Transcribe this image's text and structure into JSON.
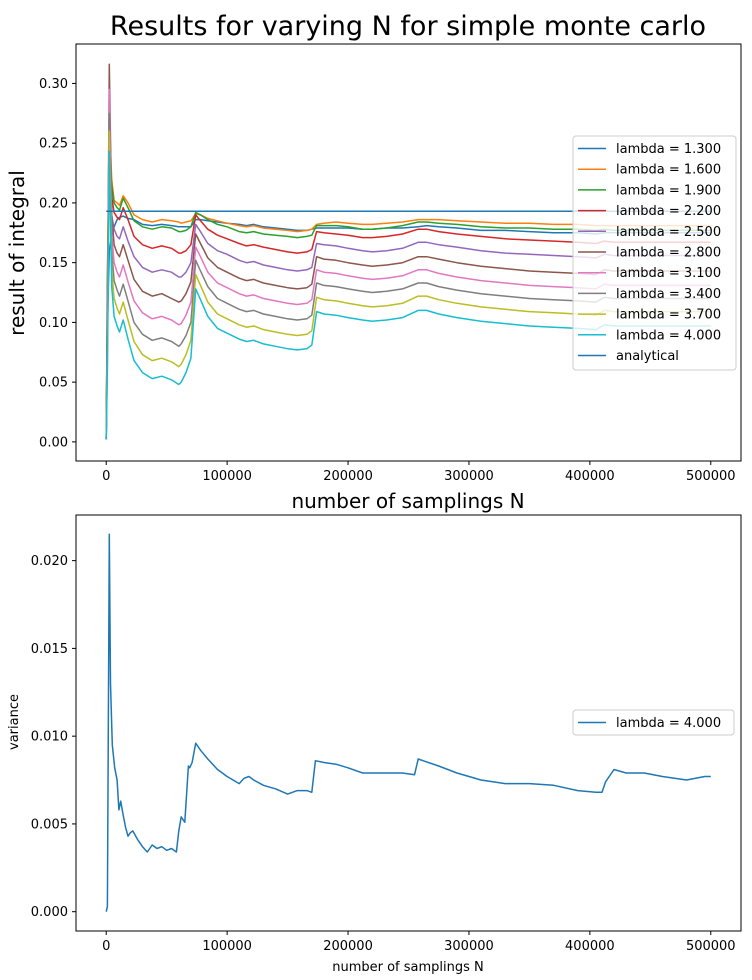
{
  "chart_data": [
    {
      "type": "line",
      "title": "Results for varying N for simple monte carlo",
      "xlabel": "number of samplings N",
      "ylabel": "result of integral",
      "xlim": [
        -25000,
        525000
      ],
      "ylim": [
        -0.016,
        0.333
      ],
      "xticks": [
        0,
        100000,
        200000,
        300000,
        400000,
        500000
      ],
      "xtick_labels": [
        "0",
        "100000",
        "200000",
        "300000",
        "400000",
        "500000"
      ],
      "yticks": [
        0.0,
        0.05,
        0.1,
        0.15,
        0.2,
        0.25,
        0.3
      ],
      "ytick_labels": [
        "0.00",
        "0.05",
        "0.10",
        "0.15",
        "0.20",
        "0.25",
        "0.30"
      ],
      "grid": false,
      "legend_position": "center-right",
      "analytical": {
        "name": "analytical",
        "value": 0.193,
        "x_range": [
          0,
          500000
        ],
        "color": "#1f77b4"
      },
      "profile_x": [
        0,
        1000,
        2500,
        4500,
        6500,
        9000,
        11000,
        14000,
        18000,
        23000,
        30000,
        38000,
        46000,
        54000,
        60000,
        62000,
        66000,
        70000,
        74000,
        78000,
        84000,
        92000,
        100000,
        110000,
        116000,
        122000,
        130000,
        140000,
        150000,
        158000,
        166000,
        170000,
        174000,
        180000,
        190000,
        200000,
        212000,
        220000,
        232000,
        245000,
        258000,
        265000,
        275000,
        290000,
        310000,
        330000,
        350000,
        370000,
        390000,
        405000,
        412000,
        420000,
        430000,
        445000,
        460000,
        480000,
        500000
      ],
      "series": [
        {
          "name": "lambda = 1.300",
          "color": "#1f77b4",
          "values": [
            0.002,
            0.095,
            0.16,
            0.172,
            0.18,
            0.186,
            0.188,
            0.189,
            0.187,
            0.186,
            0.182,
            0.181,
            0.182,
            0.181,
            0.18,
            0.18,
            0.18,
            0.18,
            0.186,
            0.186,
            0.185,
            0.184,
            0.183,
            0.182,
            0.181,
            0.182,
            0.18,
            0.179,
            0.178,
            0.177,
            0.177,
            0.178,
            0.179,
            0.179,
            0.179,
            0.179,
            0.178,
            0.178,
            0.179,
            0.179,
            0.18,
            0.181,
            0.18,
            0.179,
            0.177,
            0.177,
            0.176,
            0.175,
            0.175,
            0.174,
            0.175,
            0.175,
            0.175,
            0.175,
            0.175,
            0.175,
            0.175
          ]
        },
        {
          "name": "lambda = 1.600",
          "color": "#ff7f0e",
          "values": [
            0.002,
            0.14,
            0.27,
            0.22,
            0.202,
            0.2,
            0.198,
            0.206,
            0.2,
            0.19,
            0.186,
            0.184,
            0.186,
            0.185,
            0.184,
            0.183,
            0.184,
            0.185,
            0.191,
            0.19,
            0.187,
            0.185,
            0.183,
            0.181,
            0.18,
            0.181,
            0.179,
            0.178,
            0.177,
            0.176,
            0.177,
            0.178,
            0.182,
            0.183,
            0.184,
            0.183,
            0.182,
            0.182,
            0.183,
            0.184,
            0.186,
            0.186,
            0.186,
            0.185,
            0.184,
            0.183,
            0.183,
            0.182,
            0.182,
            0.181,
            0.181,
            0.181,
            0.181,
            0.181,
            0.181,
            0.181,
            0.181
          ]
        },
        {
          "name": "lambda = 1.900",
          "color": "#2ca02c",
          "values": [
            0.002,
            0.13,
            0.26,
            0.215,
            0.2,
            0.196,
            0.194,
            0.204,
            0.196,
            0.185,
            0.18,
            0.178,
            0.18,
            0.179,
            0.176,
            0.176,
            0.177,
            0.18,
            0.192,
            0.19,
            0.186,
            0.182,
            0.18,
            0.176,
            0.175,
            0.176,
            0.174,
            0.173,
            0.172,
            0.171,
            0.172,
            0.173,
            0.181,
            0.181,
            0.181,
            0.18,
            0.178,
            0.178,
            0.179,
            0.181,
            0.184,
            0.184,
            0.183,
            0.182,
            0.18,
            0.179,
            0.179,
            0.178,
            0.178,
            0.177,
            0.178,
            0.177,
            0.177,
            0.177,
            0.177,
            0.177,
            0.177
          ]
        },
        {
          "name": "lambda = 2.200",
          "color": "#d62728",
          "values": [
            0.002,
            0.12,
            0.255,
            0.205,
            0.192,
            0.188,
            0.186,
            0.196,
            0.186,
            0.172,
            0.165,
            0.162,
            0.164,
            0.162,
            0.158,
            0.158,
            0.16,
            0.165,
            0.19,
            0.185,
            0.178,
            0.173,
            0.17,
            0.166,
            0.164,
            0.165,
            0.163,
            0.161,
            0.159,
            0.158,
            0.159,
            0.161,
            0.176,
            0.175,
            0.174,
            0.173,
            0.171,
            0.171,
            0.172,
            0.174,
            0.178,
            0.178,
            0.176,
            0.174,
            0.172,
            0.17,
            0.169,
            0.168,
            0.167,
            0.166,
            0.168,
            0.167,
            0.167,
            0.167,
            0.167,
            0.167,
            0.167
          ]
        },
        {
          "name": "lambda = 2.500",
          "color": "#9467bd",
          "values": [
            0.002,
            0.11,
            0.25,
            0.19,
            0.178,
            0.172,
            0.17,
            0.18,
            0.168,
            0.155,
            0.146,
            0.142,
            0.144,
            0.142,
            0.138,
            0.138,
            0.142,
            0.15,
            0.182,
            0.176,
            0.166,
            0.16,
            0.157,
            0.152,
            0.15,
            0.151,
            0.148,
            0.146,
            0.144,
            0.143,
            0.144,
            0.146,
            0.166,
            0.165,
            0.164,
            0.162,
            0.16,
            0.159,
            0.16,
            0.162,
            0.167,
            0.167,
            0.165,
            0.163,
            0.16,
            0.158,
            0.157,
            0.156,
            0.155,
            0.154,
            0.157,
            0.156,
            0.156,
            0.156,
            0.156,
            0.156,
            0.156
          ]
        },
        {
          "name": "lambda = 2.800",
          "color": "#8c564b",
          "values": [
            0.002,
            0.1,
            0.316,
            0.19,
            0.165,
            0.158,
            0.155,
            0.165,
            0.152,
            0.136,
            0.126,
            0.122,
            0.124,
            0.12,
            0.117,
            0.118,
            0.124,
            0.134,
            0.174,
            0.166,
            0.154,
            0.146,
            0.142,
            0.137,
            0.135,
            0.136,
            0.133,
            0.131,
            0.129,
            0.128,
            0.129,
            0.132,
            0.155,
            0.153,
            0.152,
            0.15,
            0.148,
            0.147,
            0.148,
            0.15,
            0.155,
            0.155,
            0.153,
            0.15,
            0.147,
            0.145,
            0.143,
            0.142,
            0.141,
            0.14,
            0.144,
            0.143,
            0.143,
            0.143,
            0.143,
            0.143,
            0.143
          ]
        },
        {
          "name": "lambda = 3.100",
          "color": "#e377c2",
          "values": [
            0.002,
            0.09,
            0.295,
            0.175,
            0.15,
            0.142,
            0.138,
            0.148,
            0.134,
            0.118,
            0.108,
            0.103,
            0.105,
            0.102,
            0.098,
            0.099,
            0.106,
            0.117,
            0.163,
            0.155,
            0.142,
            0.133,
            0.129,
            0.124,
            0.122,
            0.123,
            0.12,
            0.118,
            0.116,
            0.115,
            0.116,
            0.119,
            0.144,
            0.142,
            0.141,
            0.139,
            0.137,
            0.136,
            0.137,
            0.139,
            0.144,
            0.144,
            0.141,
            0.138,
            0.135,
            0.133,
            0.131,
            0.13,
            0.129,
            0.128,
            0.132,
            0.131,
            0.131,
            0.131,
            0.131,
            0.131,
            0.131
          ]
        },
        {
          "name": "lambda = 3.400",
          "color": "#7f7f7f",
          "values": [
            0.002,
            0.08,
            0.275,
            0.16,
            0.135,
            0.127,
            0.122,
            0.132,
            0.118,
            0.1,
            0.09,
            0.085,
            0.087,
            0.084,
            0.08,
            0.082,
            0.089,
            0.1,
            0.152,
            0.143,
            0.13,
            0.12,
            0.116,
            0.111,
            0.109,
            0.11,
            0.107,
            0.105,
            0.103,
            0.102,
            0.103,
            0.106,
            0.133,
            0.131,
            0.13,
            0.128,
            0.126,
            0.125,
            0.126,
            0.128,
            0.133,
            0.133,
            0.13,
            0.127,
            0.124,
            0.122,
            0.12,
            0.119,
            0.118,
            0.117,
            0.121,
            0.12,
            0.12,
            0.12,
            0.12,
            0.12,
            0.12
          ]
        },
        {
          "name": "lambda = 3.700",
          "color": "#bcbd22",
          "values": [
            0.002,
            0.07,
            0.26,
            0.145,
            0.12,
            0.112,
            0.107,
            0.117,
            0.102,
            0.084,
            0.073,
            0.068,
            0.07,
            0.067,
            0.063,
            0.065,
            0.073,
            0.085,
            0.14,
            0.131,
            0.117,
            0.107,
            0.103,
            0.098,
            0.096,
            0.097,
            0.094,
            0.092,
            0.09,
            0.089,
            0.09,
            0.093,
            0.121,
            0.119,
            0.118,
            0.116,
            0.114,
            0.113,
            0.114,
            0.116,
            0.122,
            0.122,
            0.119,
            0.116,
            0.113,
            0.111,
            0.109,
            0.108,
            0.107,
            0.106,
            0.11,
            0.109,
            0.109,
            0.109,
            0.109,
            0.109,
            0.109
          ]
        },
        {
          "name": "lambda = 4.000",
          "color": "#17becf",
          "values": [
            0.002,
            0.06,
            0.243,
            0.13,
            0.105,
            0.097,
            0.092,
            0.102,
            0.086,
            0.068,
            0.058,
            0.053,
            0.055,
            0.052,
            0.048,
            0.05,
            0.058,
            0.07,
            0.128,
            0.119,
            0.105,
            0.095,
            0.091,
            0.086,
            0.084,
            0.085,
            0.082,
            0.08,
            0.078,
            0.077,
            0.078,
            0.081,
            0.109,
            0.107,
            0.106,
            0.104,
            0.102,
            0.101,
            0.102,
            0.104,
            0.11,
            0.11,
            0.107,
            0.104,
            0.101,
            0.099,
            0.097,
            0.096,
            0.095,
            0.094,
            0.098,
            0.097,
            0.097,
            0.097,
            0.097,
            0.097,
            0.097
          ]
        }
      ]
    },
    {
      "type": "line",
      "title": "",
      "xlabel": "number of samplings N",
      "ylabel": "variance",
      "xlim": [
        -25000,
        525000
      ],
      "ylim": [
        -0.0011,
        0.0226
      ],
      "xticks": [
        0,
        100000,
        200000,
        300000,
        400000,
        500000
      ],
      "xtick_labels": [
        "0",
        "100000",
        "200000",
        "300000",
        "400000",
        "500000"
      ],
      "yticks": [
        0.0,
        0.005,
        0.01,
        0.015,
        0.02
      ],
      "ytick_labels": [
        "0.000",
        "0.005",
        "0.010",
        "0.015",
        "0.020"
      ],
      "grid": false,
      "legend_position": "center-right",
      "series": [
        {
          "name": "lambda = 4.000",
          "color": "#1f77b4",
          "x": [
            0,
            1000,
            2500,
            3500,
            5000,
            7000,
            9000,
            10500,
            12000,
            14000,
            16000,
            18000,
            20000,
            22000,
            26000,
            30000,
            34000,
            38000,
            42000,
            46000,
            50000,
            54000,
            58000,
            60000,
            62000,
            65000,
            68000,
            69000,
            71000,
            74000,
            78000,
            84000,
            92000,
            100000,
            110000,
            114000,
            118000,
            122000,
            130000,
            140000,
            150000,
            158000,
            166000,
            170000,
            173000,
            180000,
            190000,
            200000,
            212000,
            220000,
            232000,
            245000,
            255000,
            258000,
            262000,
            275000,
            290000,
            310000,
            330000,
            350000,
            370000,
            390000,
            405000,
            410000,
            413000,
            420000,
            430000,
            445000,
            460000,
            480000,
            495000,
            500000
          ],
          "values": [
            0.0,
            0.0003,
            0.0215,
            0.013,
            0.0095,
            0.0082,
            0.0075,
            0.0058,
            0.0063,
            0.0055,
            0.0048,
            0.0043,
            0.0045,
            0.0046,
            0.0041,
            0.0037,
            0.0034,
            0.0038,
            0.0036,
            0.0037,
            0.0035,
            0.0036,
            0.0034,
            0.0046,
            0.0054,
            0.0051,
            0.0083,
            0.0082,
            0.0085,
            0.0096,
            0.0092,
            0.0087,
            0.0081,
            0.0077,
            0.0073,
            0.0076,
            0.0077,
            0.0075,
            0.0072,
            0.007,
            0.0067,
            0.0069,
            0.0069,
            0.0068,
            0.0086,
            0.0085,
            0.0084,
            0.0082,
            0.0079,
            0.0079,
            0.0079,
            0.0079,
            0.0078,
            0.0087,
            0.0086,
            0.0083,
            0.0079,
            0.0075,
            0.0073,
            0.0073,
            0.0072,
            0.0069,
            0.0068,
            0.0068,
            0.0074,
            0.0081,
            0.0079,
            0.0079,
            0.0077,
            0.0075,
            0.0077,
            0.0077
          ]
        }
      ]
    }
  ]
}
